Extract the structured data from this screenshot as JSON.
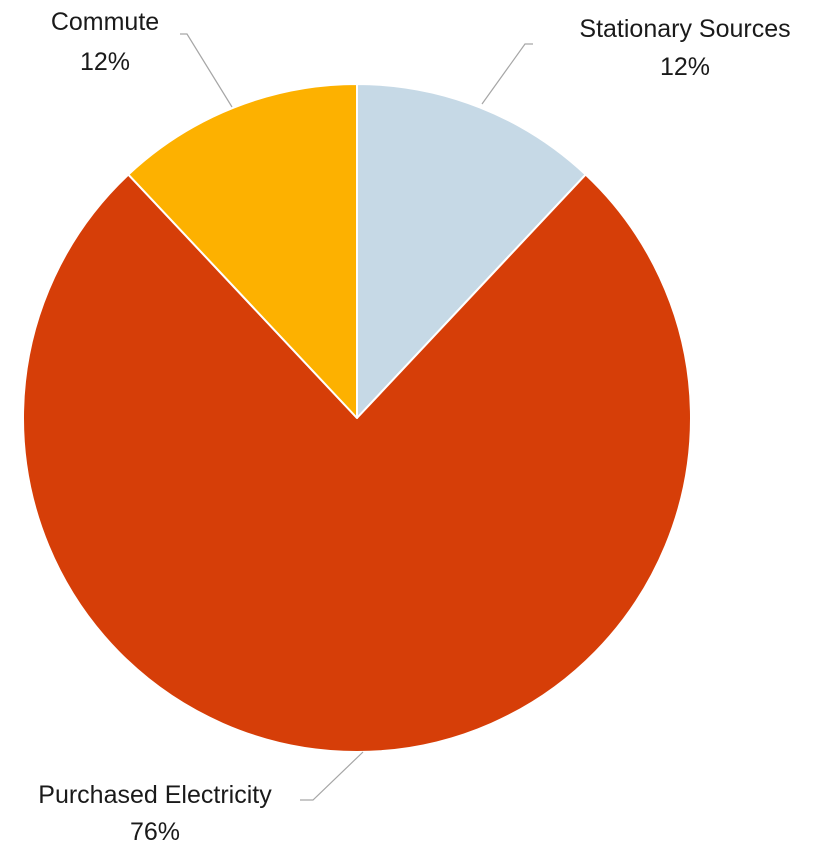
{
  "chart_data": {
    "type": "pie",
    "title": "",
    "slices": [
      {
        "label": "Stationary Sources",
        "value": 12,
        "value_label": "12%",
        "color": "#C6D9E6"
      },
      {
        "label": "Purchased Electricity",
        "value": 76,
        "value_label": "76%",
        "color": "#D63E08"
      },
      {
        "label": "Commute",
        "value": 12,
        "value_label": "12%",
        "color": "#FDB100"
      }
    ],
    "start_angle": "12 o'clock",
    "direction": "clockwise",
    "legend": "none",
    "label_position": "outside with leader lines"
  }
}
